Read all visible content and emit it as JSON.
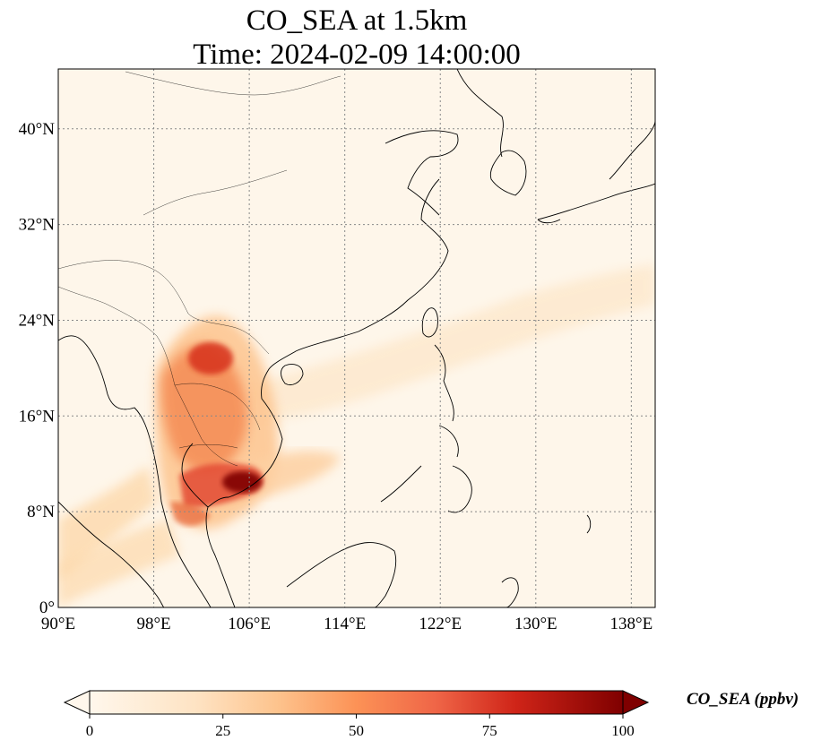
{
  "title": {
    "line1": "CO_SEA at 1.5km",
    "line2": "Time: 2024-02-09 14:00:00"
  },
  "map": {
    "projection": "PlateCarree",
    "lon_range": [
      90,
      140
    ],
    "lat_range": [
      0,
      45
    ],
    "gridlines": "dotted",
    "lon_ticks": [
      {
        "value": 90,
        "label": "90°E"
      },
      {
        "value": 98,
        "label": "98°E"
      },
      {
        "value": 106,
        "label": "106°E"
      },
      {
        "value": 114,
        "label": "114°E"
      },
      {
        "value": 122,
        "label": "122°E"
      },
      {
        "value": 130,
        "label": "130°E"
      },
      {
        "value": 138,
        "label": "138°E"
      }
    ],
    "lat_ticks": [
      {
        "value": 0,
        "label": "0°"
      },
      {
        "value": 8,
        "label": "8°N"
      },
      {
        "value": 16,
        "label": "16°N"
      },
      {
        "value": 24,
        "label": "24°N"
      },
      {
        "value": 32,
        "label": "32°N"
      },
      {
        "value": 40,
        "label": "40°N"
      }
    ],
    "colormap": "OrRd",
    "colors": {
      "low": "#fff7ec",
      "mid": "#fc8d59",
      "high": "#7f0000",
      "background": "#fef6ea"
    }
  },
  "colorbar": {
    "label": "CO_SEA (ppbv)",
    "range": [
      0,
      100
    ],
    "extend": "both",
    "ticks": [
      {
        "value": 0,
        "label": "0"
      },
      {
        "value": 25,
        "label": "25"
      },
      {
        "value": 50,
        "label": "50"
      },
      {
        "value": 75,
        "label": "75"
      },
      {
        "value": 100,
        "label": "100"
      }
    ]
  }
}
